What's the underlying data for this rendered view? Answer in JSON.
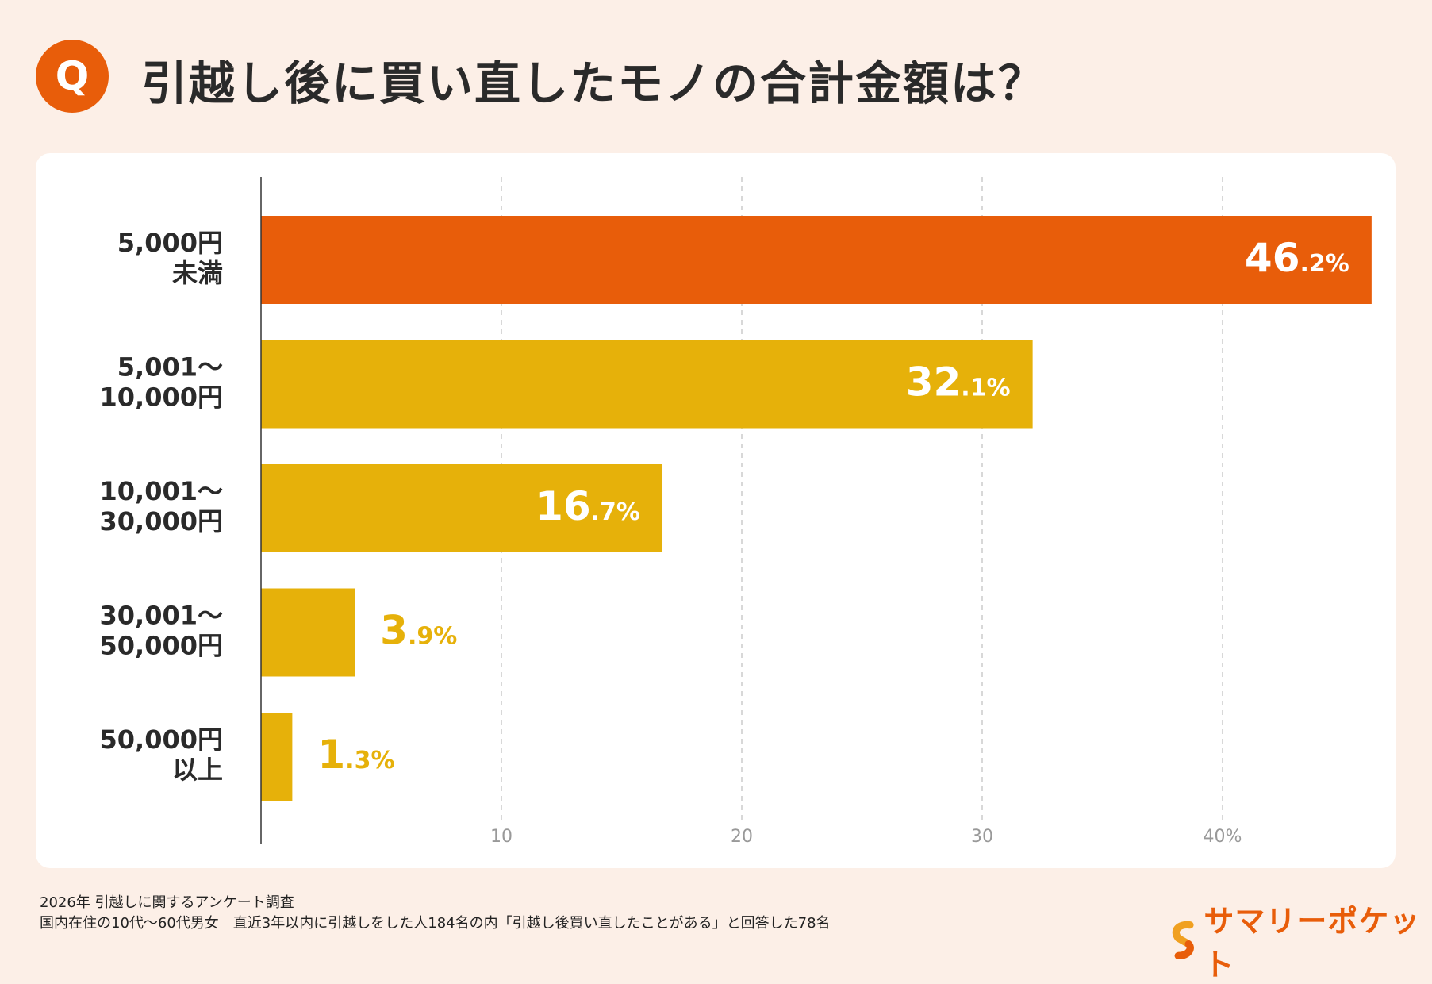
{
  "header": {
    "badge": "Q",
    "title": "引越し後に買い直したモノの合計金額は？"
  },
  "chart_data": {
    "type": "bar",
    "orientation": "horizontal",
    "title": "引越し後に買い直したモノの合計金額は？",
    "categories": [
      [
        "5,000円",
        "未満"
      ],
      [
        "5,001〜",
        "10,000円"
      ],
      [
        "10,001〜",
        "30,000円"
      ],
      [
        "30,001〜",
        "50,000円"
      ],
      [
        "50,000円",
        "以上"
      ]
    ],
    "values": [
      46.2,
      32.1,
      16.7,
      3.9,
      1.3
    ],
    "value_labels": [
      [
        "46",
        ".2%"
      ],
      [
        "32",
        ".1%"
      ],
      [
        "16",
        ".7%"
      ],
      [
        "3",
        ".9%"
      ],
      [
        "1",
        ".3%"
      ]
    ],
    "xticks": [
      "10",
      "20",
      "30",
      "40%"
    ],
    "xtick_values": [
      10,
      20,
      30,
      40
    ],
    "xlim": [
      0,
      46.2
    ],
    "grid": true,
    "colors": {
      "highlight": "#e85d0a",
      "default": "#e6b10a"
    }
  },
  "footer": {
    "line1": "2026年  引越しに関するアンケート調査",
    "line2": "国内在住の10代〜60代男女　直近3年以内に引越しをした人184名の内「引越し後買い直したことがある」と回答した78名"
  },
  "logo": {
    "text": "サマリーポケット",
    "icon": "s-logo-icon"
  }
}
